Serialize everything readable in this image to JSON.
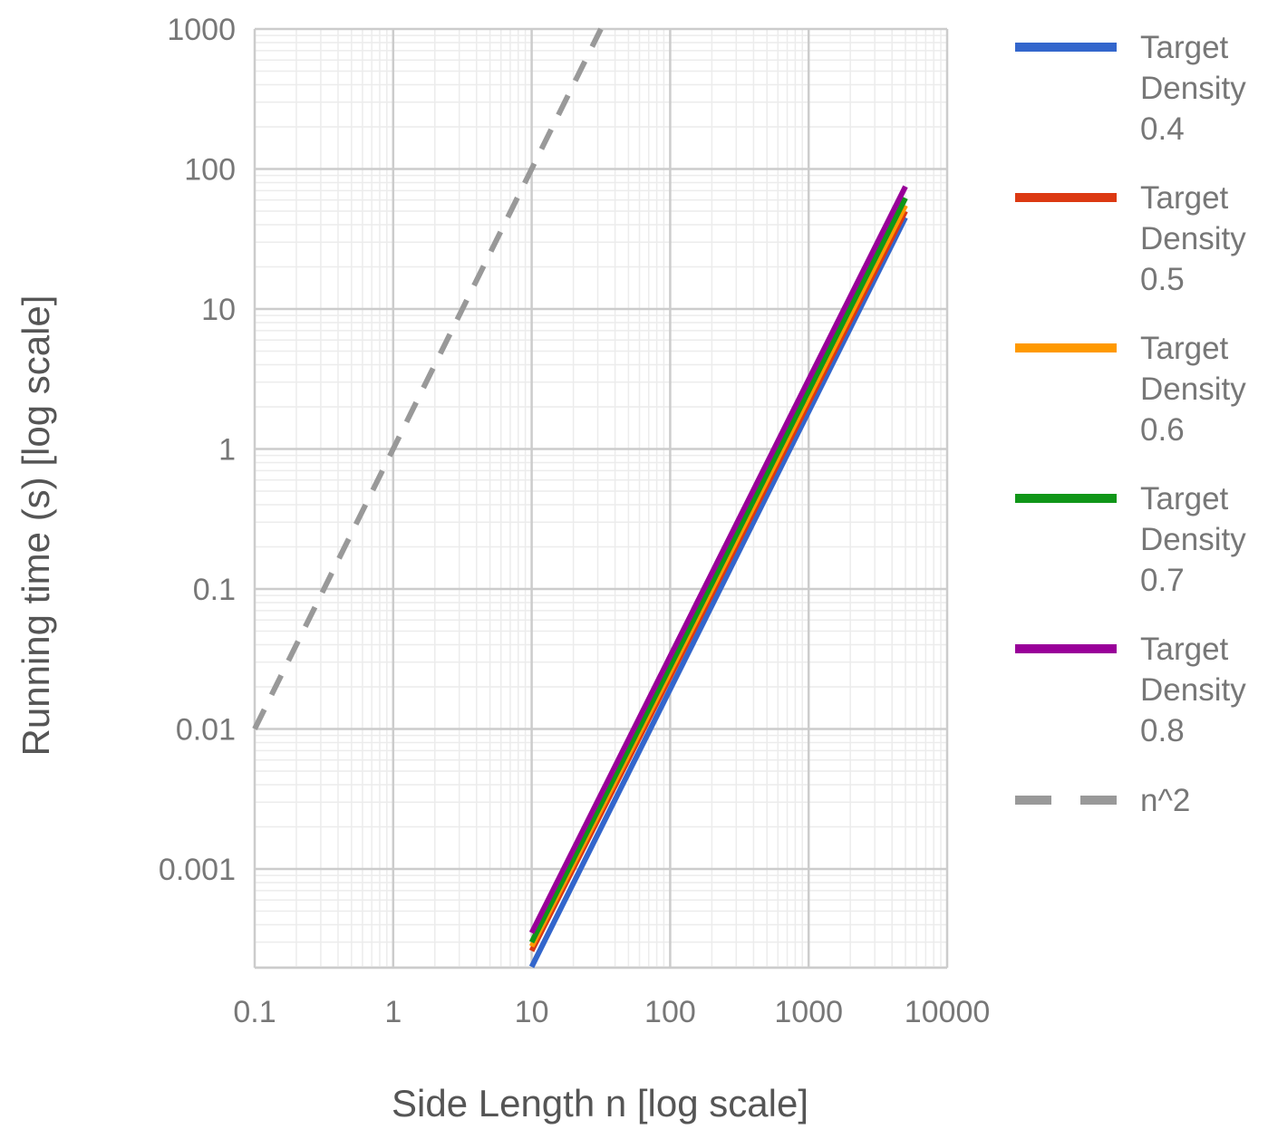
{
  "chart_data": {
    "type": "line",
    "xlabel": "Side Length n [log scale]",
    "ylabel": "Running time (s) [log scale]",
    "x_scale": "log",
    "y_scale": "log",
    "xlim": [
      0.1,
      10000
    ],
    "ylim": [
      0.0002,
      1000
    ],
    "x_ticks": [
      "0.1",
      "1",
      "10",
      "100",
      "1000",
      "10000"
    ],
    "y_ticks": [
      "0.001",
      "0.01",
      "0.1",
      "1",
      "10",
      "100",
      "1000"
    ],
    "grid": true,
    "legend_position": "right",
    "series": [
      {
        "name": "Target Density 0.4",
        "legend_lines": [
          "Target",
          "Density",
          "0.4"
        ],
        "color": "#3366cc",
        "dash": false,
        "x": [
          10,
          5000
        ],
        "y": [
          0.0002,
          45
        ]
      },
      {
        "name": "Target Density 0.5",
        "legend_lines": [
          "Target",
          "Density",
          "0.5"
        ],
        "color": "#dc3912",
        "dash": false,
        "x": [
          10,
          5000
        ],
        "y": [
          0.00026,
          50
        ]
      },
      {
        "name": "Target Density 0.6",
        "legend_lines": [
          "Target",
          "Density",
          "0.6"
        ],
        "color": "#ff9900",
        "dash": false,
        "x": [
          10,
          5000
        ],
        "y": [
          0.00028,
          55
        ]
      },
      {
        "name": "Target Density 0.7",
        "legend_lines": [
          "Target",
          "Density",
          "0.7"
        ],
        "color": "#109618",
        "dash": false,
        "x": [
          10,
          5000
        ],
        "y": [
          0.0003,
          62
        ]
      },
      {
        "name": "Target Density 0.8",
        "legend_lines": [
          "Target",
          "Density",
          "0.8"
        ],
        "color": "#990099",
        "dash": false,
        "x": [
          10,
          5000
        ],
        "y": [
          0.00035,
          75
        ]
      },
      {
        "name": "n^2",
        "legend_lines": [
          "n^2"
        ],
        "color": "#999999",
        "dash": true,
        "x": [
          0.1,
          31.6
        ],
        "y": [
          0.01,
          1000
        ]
      }
    ]
  }
}
